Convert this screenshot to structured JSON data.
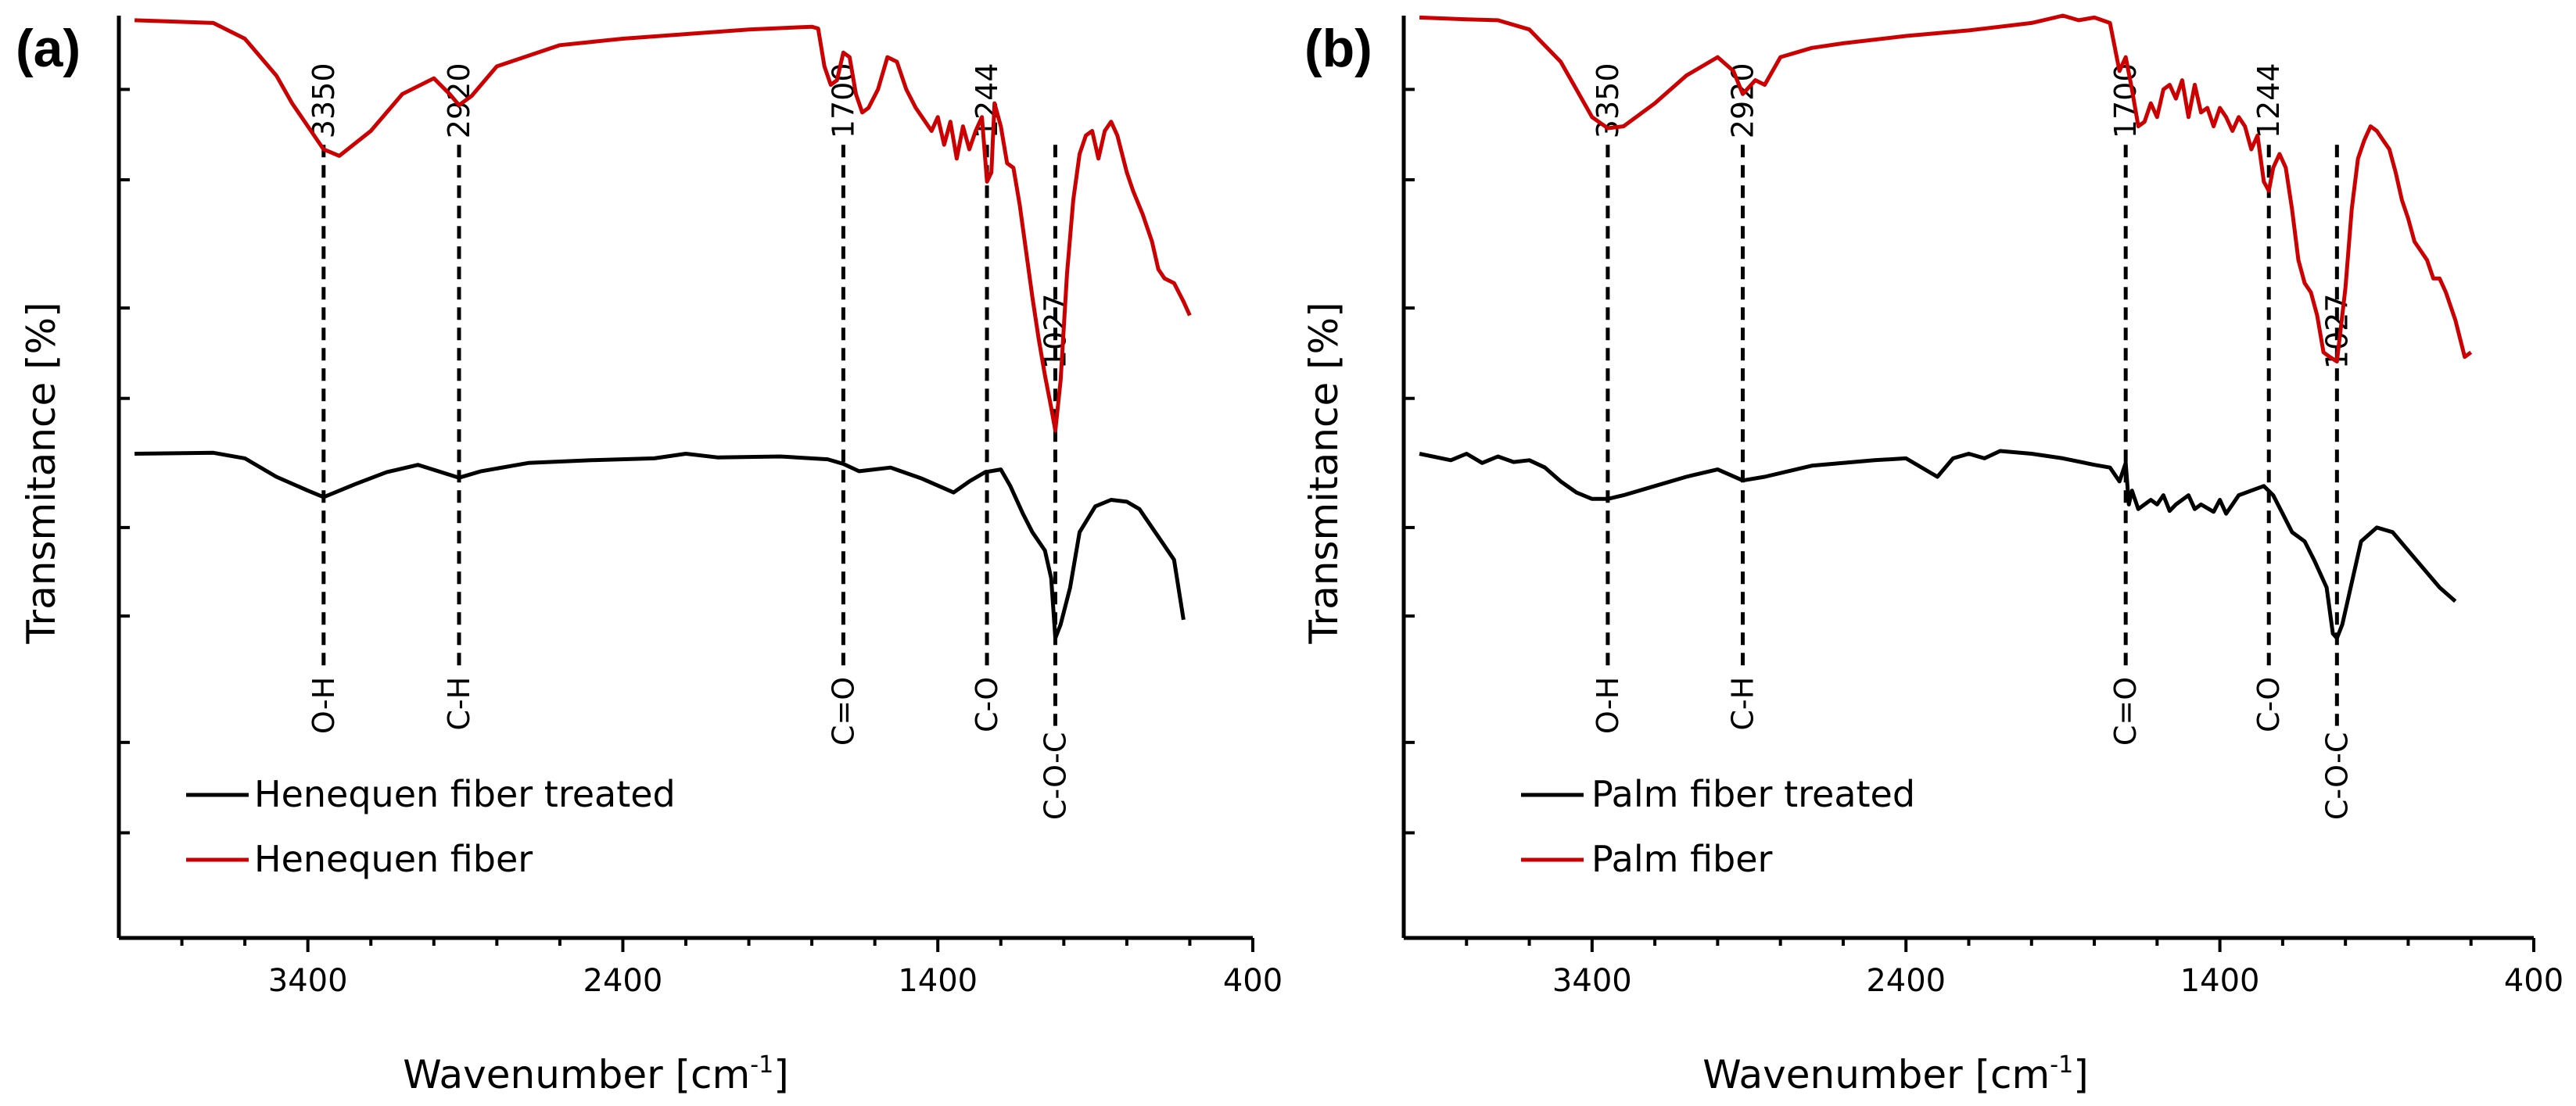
{
  "chart_data": [
    {
      "type": "line",
      "panel_label": "(a)",
      "xlabel": "Wavenumber [cm",
      "xlabel_sup": "-1",
      "xlabel_end": "]",
      "ylabel": "Transmitance [%]",
      "xlim": [
        4000,
        400
      ],
      "ylim": [
        0,
        100
      ],
      "xticks": [
        3400,
        2400,
        1400,
        400
      ],
      "xtick_labels": [
        "3400",
        "2400",
        "1400",
        "400"
      ],
      "peaks": [
        {
          "wavenumber": 3350,
          "label": "3350",
          "bond": "O-H"
        },
        {
          "wavenumber": 2920,
          "label": "2920",
          "bond": "C-H"
        },
        {
          "wavenumber": 1700,
          "label": "1700",
          "bond": "C=O"
        },
        {
          "wavenumber": 1244,
          "label": "1244",
          "bond": "C-O"
        },
        {
          "wavenumber": 1027,
          "label": "1027",
          "bond": "C-O-C"
        }
      ],
      "series": [
        {
          "name": "Henequen fiber treated",
          "color": "#000000",
          "x": [
            3950,
            3700,
            3600,
            3500,
            3400,
            3350,
            3250,
            3150,
            3050,
            2920,
            2850,
            2700,
            2500,
            2300,
            2200,
            2100,
            1900,
            1750,
            1700,
            1650,
            1550,
            1450,
            1350,
            1300,
            1250,
            1200,
            1170,
            1130,
            1100,
            1060,
            1040,
            1027,
            1010,
            980,
            950,
            900,
            850,
            800,
            760,
            700,
            650,
            620
          ],
          "values": [
            52.5,
            52.6,
            52.0,
            50.0,
            48.5,
            47.8,
            49.2,
            50.5,
            51.3,
            49.9,
            50.6,
            51.5,
            51.8,
            52.0,
            52.5,
            52.1,
            52.2,
            51.9,
            51.4,
            50.6,
            51.0,
            49.8,
            48.3,
            49.5,
            50.5,
            50.8,
            49.0,
            46.0,
            44.0,
            42.0,
            39.0,
            32.5,
            34.0,
            38.0,
            44.0,
            46.8,
            47.5,
            47.3,
            46.5,
            43.5,
            41.0,
            34.5
          ]
        },
        {
          "name": "Henequen fiber",
          "color": "#cc0000",
          "x": [
            3950,
            3700,
            3600,
            3500,
            3450,
            3400,
            3350,
            3300,
            3200,
            3100,
            3000,
            2950,
            2920,
            2880,
            2800,
            2600,
            2400,
            2200,
            2000,
            1800,
            1780,
            1760,
            1740,
            1720,
            1700,
            1680,
            1660,
            1640,
            1620,
            1590,
            1560,
            1530,
            1500,
            1470,
            1450,
            1420,
            1400,
            1380,
            1360,
            1340,
            1320,
            1300,
            1280,
            1260,
            1244,
            1230,
            1220,
            1200,
            1180,
            1160,
            1140,
            1120,
            1100,
            1080,
            1060,
            1040,
            1027,
            1010,
            990,
            970,
            950,
            930,
            910,
            890,
            870,
            850,
            830,
            800,
            780,
            750,
            720,
            700,
            680,
            650,
            620,
            600
          ],
          "values": [
            99.5,
            99.2,
            97.5,
            93.5,
            90.5,
            88.0,
            85.5,
            84.8,
            87.5,
            91.5,
            93.2,
            91.5,
            90.3,
            91.3,
            94.5,
            96.8,
            97.5,
            98.0,
            98.5,
            98.8,
            98.6,
            94.5,
            92.5,
            93.0,
            96.0,
            95.5,
            91.5,
            89.5,
            90.0,
            92.0,
            95.5,
            95.0,
            92.0,
            90.0,
            89.0,
            87.5,
            89.0,
            86.0,
            88.5,
            84.5,
            88.0,
            85.5,
            87.5,
            89.0,
            82.0,
            83.0,
            90.5,
            88.0,
            84.0,
            83.5,
            79.5,
            74.5,
            69.5,
            65.0,
            61.0,
            57.5,
            55.0,
            60.5,
            72.0,
            80.0,
            85.0,
            87.0,
            87.5,
            84.5,
            87.5,
            88.5,
            87.0,
            83.0,
            81.0,
            78.5,
            75.5,
            72.5,
            71.5,
            71.0,
            69.0,
            67.5
          ]
        }
      ],
      "legend": [
        "Henequen fiber treated",
        "Henequen fiber"
      ],
      "legend_position": "bottom-left"
    },
    {
      "type": "line",
      "panel_label": "(b)",
      "xlabel": "Wavenumber [cm",
      "xlabel_sup": "-1",
      "xlabel_end": "]",
      "ylabel": "Transmitance [%]",
      "xlim": [
        4000,
        400
      ],
      "ylim": [
        0,
        100
      ],
      "xticks": [
        3400,
        2400,
        1400,
        400
      ],
      "xtick_labels": [
        "3400",
        "2400",
        "1400",
        "400"
      ],
      "peaks": [
        {
          "wavenumber": 3350,
          "label": "3350",
          "bond": "O-H"
        },
        {
          "wavenumber": 2920,
          "label": "2920",
          "bond": "C-H"
        },
        {
          "wavenumber": 1700,
          "label": "1700",
          "bond": "C=O"
        },
        {
          "wavenumber": 1244,
          "label": "1244",
          "bond": "C-O"
        },
        {
          "wavenumber": 1027,
          "label": "1027",
          "bond": "C-O-C"
        }
      ],
      "series": [
        {
          "name": "Palm fiber treated",
          "color": "#000000",
          "x": [
            3950,
            3850,
            3800,
            3750,
            3700,
            3650,
            3600,
            3550,
            3500,
            3450,
            3400,
            3350,
            3300,
            3200,
            3100,
            3000,
            2920,
            2850,
            2700,
            2500,
            2400,
            2300,
            2250,
            2200,
            2150,
            2100,
            2000,
            1900,
            1800,
            1750,
            1720,
            1700,
            1690,
            1680,
            1660,
            1620,
            1600,
            1580,
            1560,
            1540,
            1500,
            1480,
            1460,
            1420,
            1400,
            1380,
            1360,
            1340,
            1300,
            1260,
            1230,
            1200,
            1170,
            1130,
            1100,
            1060,
            1040,
            1027,
            1010,
            980,
            950,
            900,
            850,
            800,
            750,
            700,
            650
          ],
          "values": [
            52.5,
            51.8,
            52.5,
            51.5,
            52.2,
            51.6,
            51.8,
            51.0,
            49.5,
            48.3,
            47.6,
            47.6,
            48.0,
            49.0,
            50.0,
            50.8,
            49.6,
            50.0,
            51.2,
            51.8,
            52.0,
            50.0,
            52.0,
            52.5,
            52.0,
            52.8,
            52.5,
            52.0,
            51.3,
            51.0,
            49.5,
            51.5,
            47.0,
            48.5,
            46.5,
            47.5,
            47.0,
            48.0,
            46.3,
            47.0,
            48.0,
            46.5,
            47.0,
            46.2,
            47.5,
            46.0,
            47.0,
            48.0,
            48.5,
            49.0,
            48.0,
            46.0,
            44.0,
            43.0,
            41.0,
            38.0,
            33.0,
            32.5,
            34.0,
            38.5,
            43.0,
            44.5,
            44.0,
            42.0,
            40.0,
            38.0,
            36.5
          ]
        },
        {
          "name": "Palm fiber",
          "color": "#cc0000",
          "x": [
            3950,
            3800,
            3700,
            3600,
            3500,
            3450,
            3400,
            3350,
            3300,
            3200,
            3100,
            3000,
            2950,
            2920,
            2880,
            2850,
            2800,
            2700,
            2600,
            2400,
            2200,
            2000,
            1900,
            1850,
            1800,
            1750,
            1720,
            1700,
            1680,
            1660,
            1640,
            1620,
            1600,
            1580,
            1560,
            1540,
            1520,
            1500,
            1480,
            1460,
            1440,
            1420,
            1400,
            1380,
            1360,
            1340,
            1320,
            1300,
            1280,
            1260,
            1244,
            1230,
            1210,
            1190,
            1170,
            1150,
            1130,
            1110,
            1090,
            1070,
            1050,
            1027,
            1000,
            980,
            960,
            940,
            920,
            900,
            880,
            860,
            840,
            820,
            800,
            780,
            760,
            740,
            720,
            700,
            680,
            650,
            620,
            600
          ],
          "values": [
            99.8,
            99.6,
            99.5,
            98.5,
            95.0,
            92.0,
            89.0,
            87.8,
            88.0,
            90.5,
            93.5,
            95.5,
            94.0,
            91.5,
            93.0,
            92.5,
            95.5,
            96.5,
            97.0,
            97.8,
            98.4,
            99.2,
            100.0,
            99.5,
            99.8,
            99.2,
            94.0,
            95.5,
            92.0,
            88.0,
            88.5,
            90.5,
            89.0,
            92.0,
            92.5,
            91.0,
            93.0,
            89.0,
            92.5,
            89.5,
            90.0,
            88.0,
            90.0,
            89.0,
            87.5,
            89.0,
            88.0,
            85.5,
            87.0,
            82.0,
            81.0,
            83.5,
            85.0,
            83.5,
            79.0,
            73.5,
            71.0,
            70.0,
            67.5,
            63.5,
            63.0,
            62.5,
            70.5,
            79.0,
            84.5,
            86.5,
            88.0,
            87.5,
            86.5,
            85.5,
            83.0,
            80.0,
            78.0,
            75.5,
            74.5,
            73.5,
            71.5,
            71.5,
            70.0,
            67.0,
            63.0,
            63.5
          ]
        }
      ],
      "legend": [
        "Palm fiber treated",
        "Palm fiber"
      ],
      "legend_position": "bottom-left"
    }
  ]
}
